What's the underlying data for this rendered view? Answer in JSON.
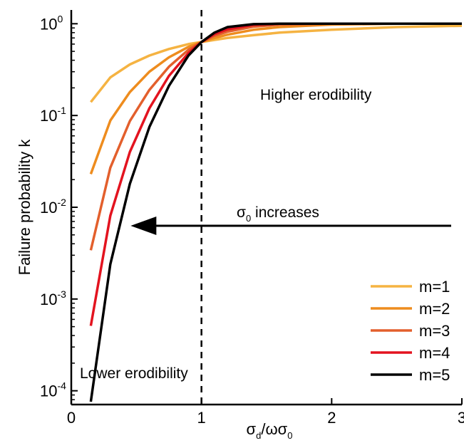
{
  "chart_data": {
    "type": "line",
    "xlabel": "σd/ωσ0",
    "ylabel": "Failure probability k",
    "xlim": [
      0,
      3
    ],
    "ylim_log10": [
      -4.15,
      0.15
    ],
    "yscale": "log",
    "x_ticks": [
      {
        "value": 0,
        "label": "0"
      },
      {
        "value": 1,
        "label": "1"
      },
      {
        "value": 2,
        "label": "2"
      },
      {
        "value": 3,
        "label": "3"
      }
    ],
    "y_ticks": [
      {
        "exp": 0,
        "label": "10",
        "sup": "0"
      },
      {
        "exp": -1,
        "label": "10",
        "sup": "-1"
      },
      {
        "exp": -2,
        "label": "10",
        "sup": "-2"
      },
      {
        "exp": -3,
        "label": "10",
        "sup": "-3"
      },
      {
        "exp": -4,
        "label": "10",
        "sup": "-4"
      }
    ],
    "threshold_line": {
      "x": 1,
      "style": "dashed",
      "color": "#000000"
    },
    "annotations": {
      "higher": "Higher erodibility",
      "lower": "Lower erodibility",
      "arrow_label": "σ0 increases",
      "arrow": {
        "from_x": 3.0,
        "to_x": 0.5,
        "y_log10": -2.0
      }
    },
    "legend_position": "bottom-right",
    "series": [
      {
        "name": "m=1",
        "color": "#F5B342",
        "x": [
          0.15,
          0.3,
          0.45,
          0.6,
          0.75,
          0.9,
          1.0,
          1.1,
          1.2,
          1.4,
          1.6,
          2.0,
          2.5,
          3.0
        ],
        "y": [
          0.14,
          0.26,
          0.36,
          0.45,
          0.53,
          0.6,
          0.632,
          0.667,
          0.7,
          0.75,
          0.8,
          0.86,
          0.92,
          0.95
        ]
      },
      {
        "name": "m=2",
        "color": "#EE8C1E",
        "x": [
          0.15,
          0.3,
          0.45,
          0.6,
          0.75,
          0.9,
          1.0,
          1.1,
          1.2,
          1.4,
          1.6,
          2.0,
          2.5,
          3.0
        ],
        "y": [
          0.023,
          0.088,
          0.18,
          0.3,
          0.43,
          0.56,
          0.632,
          0.7,
          0.76,
          0.86,
          0.92,
          0.98,
          1.0,
          1.0
        ]
      },
      {
        "name": "m=3",
        "color": "#E35F2C",
        "x": [
          0.15,
          0.3,
          0.45,
          0.6,
          0.75,
          0.9,
          1.0,
          1.1,
          1.2,
          1.4,
          1.6,
          2.0,
          2.5,
          3.0
        ],
        "y": [
          0.0034,
          0.027,
          0.087,
          0.19,
          0.34,
          0.52,
          0.632,
          0.74,
          0.82,
          0.93,
          0.98,
          1.0,
          1.0,
          1.0
        ]
      },
      {
        "name": "m=4",
        "color": "#E3131F",
        "x": [
          0.15,
          0.3,
          0.45,
          0.6,
          0.75,
          0.9,
          1.0,
          1.1,
          1.2,
          1.4,
          1.6,
          2.0,
          2.5,
          3.0
        ],
        "y": [
          0.00051,
          0.0081,
          0.04,
          0.12,
          0.27,
          0.48,
          0.632,
          0.77,
          0.87,
          0.97,
          1.0,
          1.0,
          1.0,
          1.0
        ]
      },
      {
        "name": "m=5",
        "color": "#000000",
        "x": [
          0.15,
          0.3,
          0.45,
          0.6,
          0.75,
          0.9,
          1.0,
          1.1,
          1.2,
          1.4,
          1.6,
          2.0,
          2.5,
          3.0
        ],
        "y": [
          7.6e-05,
          0.0024,
          0.018,
          0.075,
          0.21,
          0.45,
          0.632,
          0.8,
          0.92,
          0.99,
          1.0,
          1.0,
          1.0,
          1.0
        ]
      }
    ]
  }
}
